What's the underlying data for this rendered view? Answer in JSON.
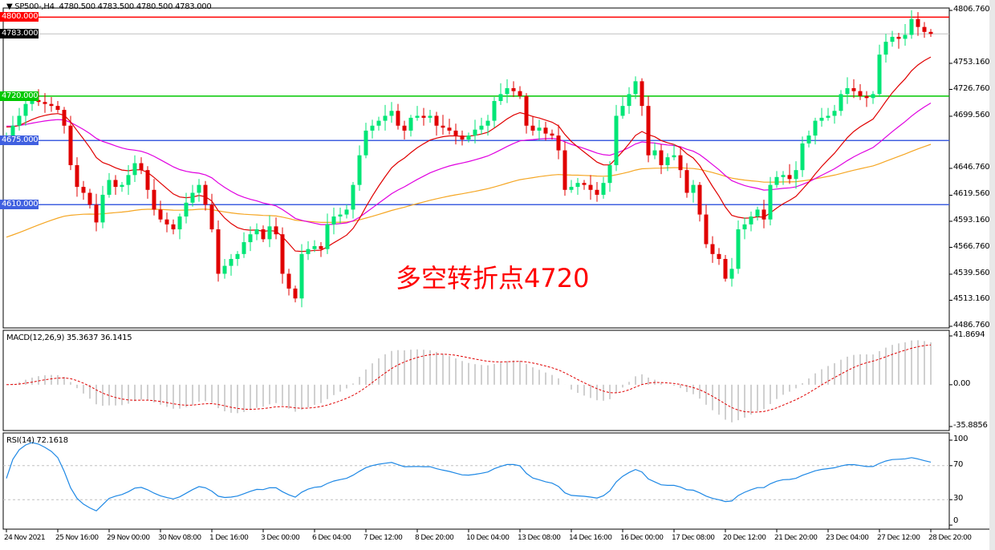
{
  "header": {
    "symbol": "SP500-,H4",
    "ohlc": "4780.500 4783.500 4780.500 4783.000"
  },
  "annotation": "多空转折点4720",
  "colors": {
    "bull": "#00e676",
    "bear": "#e00000",
    "ma_fast": "#e00000",
    "ma_mid": "#e000e0",
    "ma_slow": "#f5a623",
    "rsi": "#1e88e5",
    "macd_signal": "#e00000",
    "macd_hist": "#c0c0c0"
  },
  "chart_data": [
    {
      "type": "candlestick",
      "title": "SP500-,H4",
      "ylim": [
        4486.76,
        4806.76
      ],
      "y_ticks": [
        "4806.760",
        "4753.160",
        "4726.760",
        "4699.560",
        "4646.760",
        "4619.560",
        "4593.160",
        "4566.760",
        "4539.560",
        "4513.160",
        "4486.760"
      ],
      "x_ticks": [
        "24 Nov 2021",
        "25 Nov 16:00",
        "29 Nov 00:00",
        "30 Nov 08:00",
        "1 Dec 16:00",
        "3 Dec 00:00",
        "6 Dec 04:00",
        "7 Dec 12:00",
        "8 Dec 20:00",
        "10 Dec 04:00",
        "13 Dec 08:00",
        "14 Dec 16:00",
        "16 Dec 00:00",
        "17 Dec 08:00",
        "20 Dec 12:00",
        "21 Dec 20:00",
        "23 Dec 04:00",
        "27 Dec 12:00",
        "28 Dec 20:00"
      ],
      "close": [
        4680,
        4690,
        4700,
        4712,
        4716,
        4714,
        4712,
        4710,
        4706,
        4690,
        4650,
        4628,
        4622,
        4610,
        4592,
        4620,
        4635,
        4628,
        4630,
        4640,
        4652,
        4645,
        4625,
        4605,
        4595,
        4590,
        4585,
        4598,
        4612,
        4622,
        4630,
        4610,
        4585,
        4540,
        4548,
        4555,
        4560,
        4572,
        4580,
        4585,
        4575,
        4588,
        4580,
        4540,
        4525,
        4515,
        4560,
        4565,
        4568,
        4565,
        4590,
        4598,
        4600,
        4605,
        4630,
        4660,
        4685,
        4690,
        4695,
        4700,
        4705,
        4690,
        4685,
        4698,
        4700,
        4698,
        4700,
        4690,
        4688,
        4685,
        4680,
        4676,
        4680,
        4686,
        4690,
        4695,
        4715,
        4722,
        4728,
        4725,
        4720,
        4690,
        4685,
        4688,
        4682,
        4680,
        4665,
        4625,
        4628,
        4632,
        4630,
        4625,
        4620,
        4632,
        4650,
        4700,
        4710,
        4722,
        4735,
        4710,
        4660,
        4665,
        4650,
        4658,
        4660,
        4645,
        4622,
        4630,
        4600,
        4570,
        4560,
        4555,
        4535,
        4545,
        4585,
        4590,
        4598,
        4605,
        4595,
        4630,
        4638,
        4640,
        4636,
        4645,
        4672,
        4680,
        4695,
        4698,
        4700,
        4705,
        4722,
        4728,
        4725,
        4720,
        4718,
        4722,
        4762,
        4775,
        4780,
        4778,
        4782,
        4798,
        4790,
        4785,
        4783
      ],
      "levels": [
        {
          "value": "4800.000",
          "color": "#ff0000"
        },
        {
          "value": "4783.000",
          "color": "#000000",
          "line": "#c0c0c0"
        },
        {
          "value": "4720.000",
          "color": "#00c800"
        },
        {
          "value": "4675.000",
          "color": "#4060e0"
        },
        {
          "value": "4610.000",
          "color": "#4060e0"
        }
      ]
    },
    {
      "type": "bar+line",
      "title": "MACD(12,26,9) 35.3637 36.1415",
      "ylim": [
        -35.8856,
        41.8694
      ],
      "y_ticks": [
        "41.8694",
        "0.00",
        "-35.8856"
      ]
    },
    {
      "type": "line",
      "title": "RSI(14) 72.1618",
      "ylim": [
        0,
        100
      ],
      "y_ticks": [
        "100",
        "70",
        "30",
        "0"
      ],
      "levels": [
        70,
        30
      ]
    }
  ]
}
